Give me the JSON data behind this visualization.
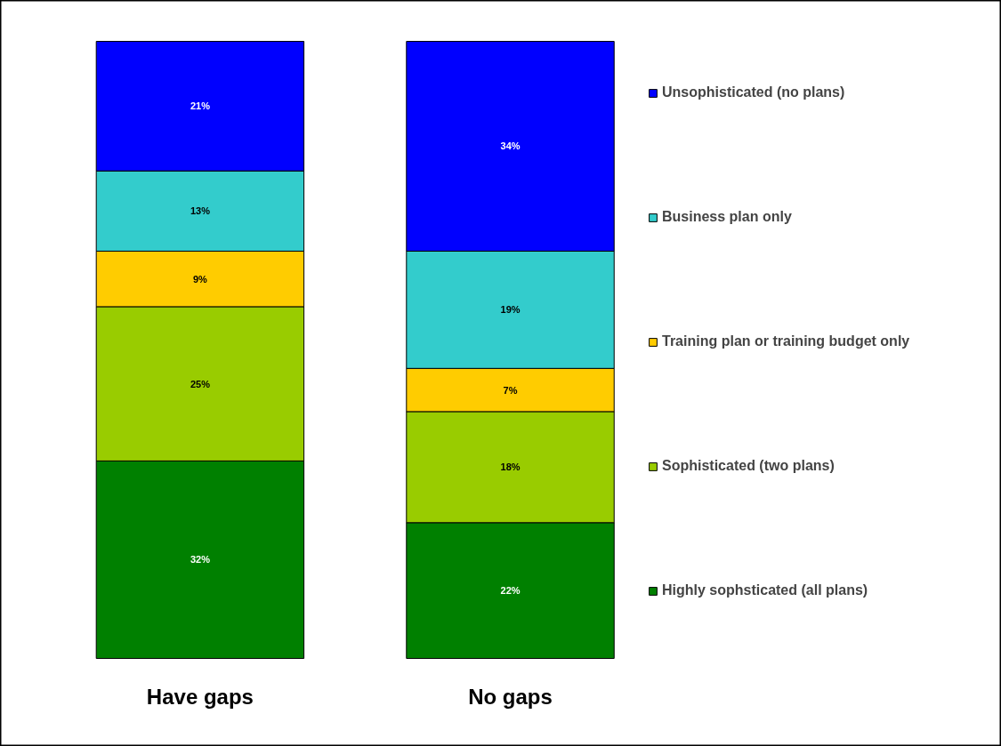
{
  "chart_data": {
    "type": "bar",
    "stacked": true,
    "legend": "right",
    "categories": [
      "Have gaps",
      "No gaps"
    ],
    "series": [
      {
        "name": "Highly sophsticated (all plans)",
        "color": "#008000",
        "values": [
          32,
          22
        ],
        "value_labels": [
          "32%",
          "22%"
        ]
      },
      {
        "name": "Sophisticated (two plans)",
        "color": "#99cc00",
        "values": [
          25,
          18
        ],
        "value_labels": [
          "25%",
          "18%"
        ]
      },
      {
        "name": "Training plan or training budget only",
        "color": "#ffcc00",
        "values": [
          9,
          7
        ],
        "value_labels": [
          "9%",
          "7%"
        ]
      },
      {
        "name": "Business plan only",
        "color": "#33cccc",
        "values": [
          13,
          19
        ],
        "value_labels": [
          "13%",
          "19%"
        ]
      },
      {
        "name": "Unsophisticated (no plans)",
        "color": "#0000ff",
        "values": [
          21,
          34
        ],
        "value_labels": [
          "21%",
          "34%"
        ]
      }
    ]
  }
}
